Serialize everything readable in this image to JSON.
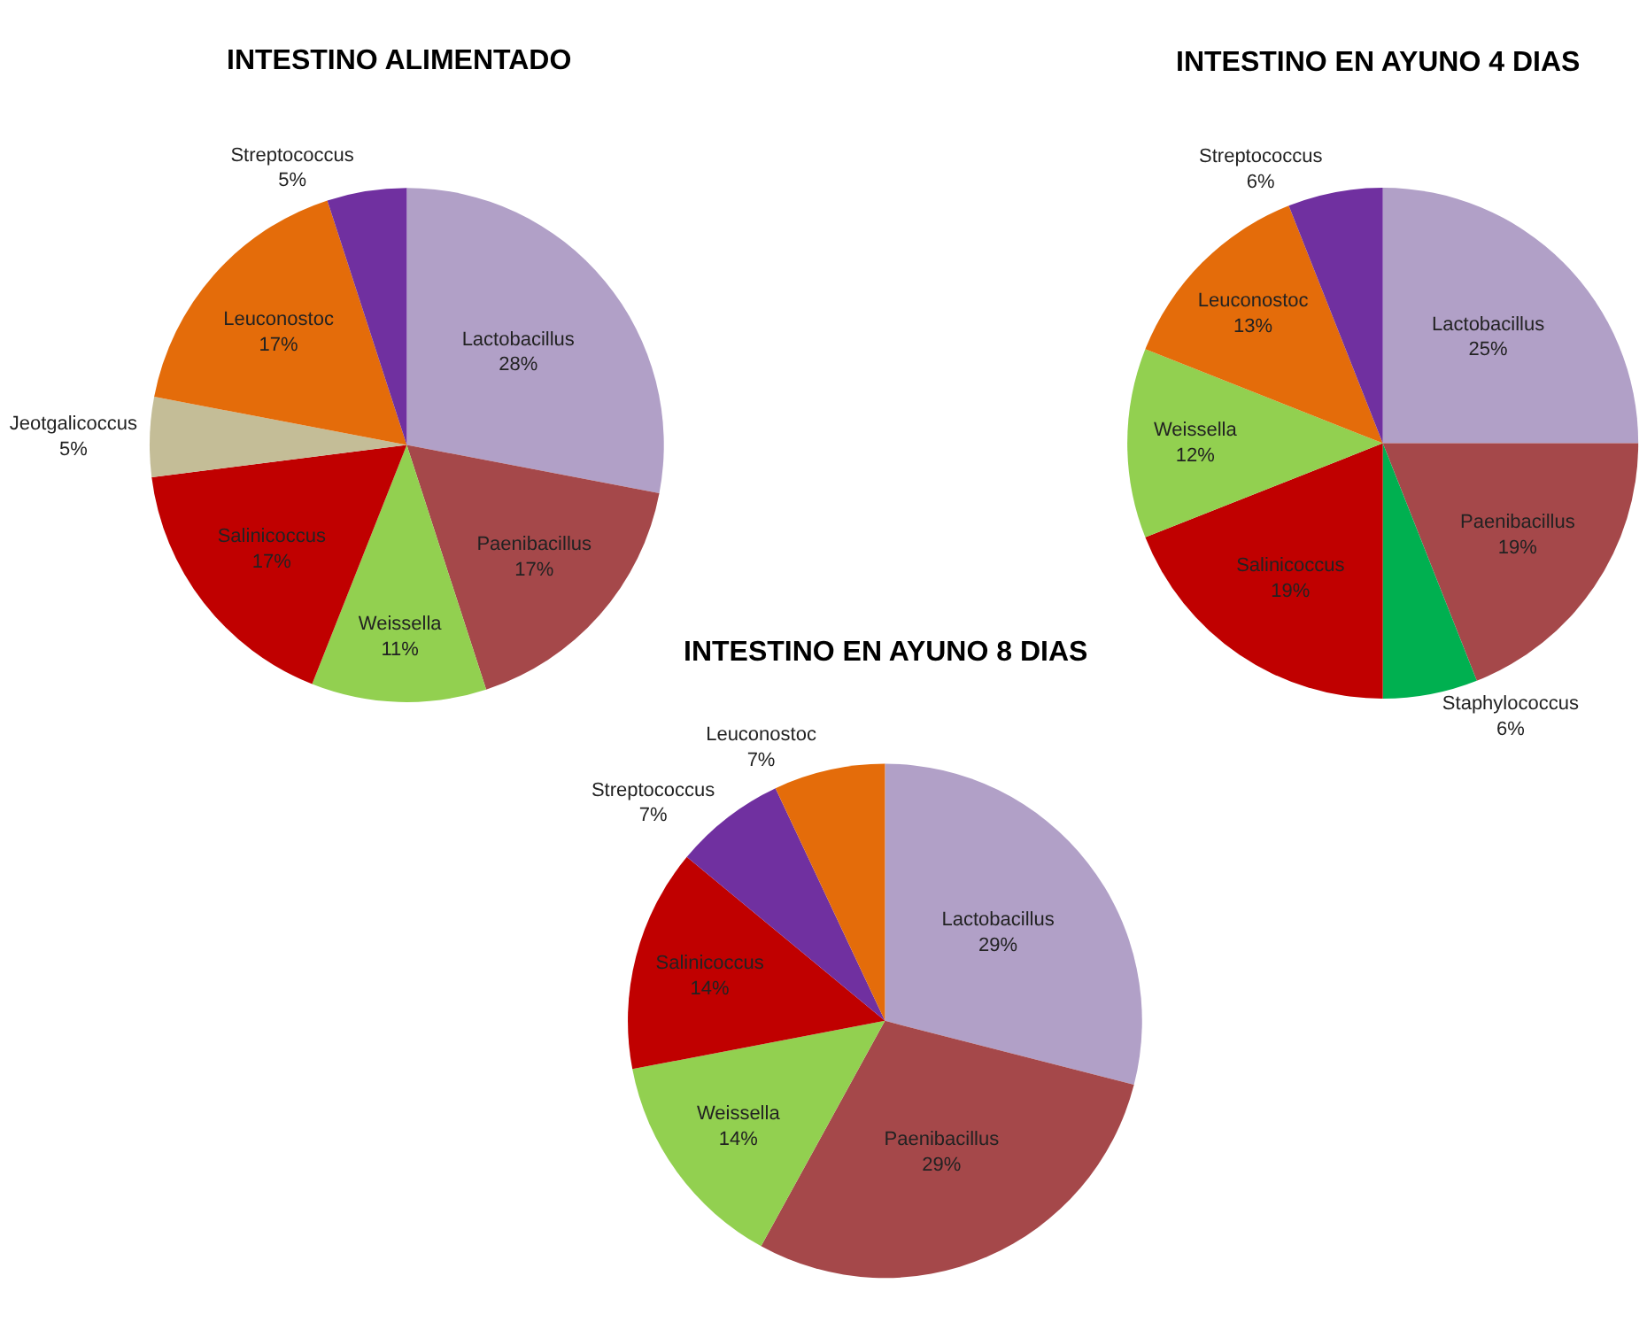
{
  "chart_data": [
    {
      "type": "pie",
      "title": "INTESTINO ALIMENTADO",
      "categories": [
        "Lactobacillus",
        "Paenibacillus",
        "Weissella",
        "Salinicoccus",
        "Jeotgalicoccus",
        "Leuconostoc",
        "Streptococcus"
      ],
      "values": [
        28,
        17,
        11,
        17,
        5,
        17,
        5
      ],
      "value_labels": [
        "28%",
        "17%",
        "11%",
        "17%",
        "5%",
        "17%",
        "5%"
      ],
      "colors": [
        "#b1a0c7",
        "#a5484a",
        "#92d050",
        "#c00000",
        "#c4bd97",
        "#e46c0a",
        "#7030a0"
      ],
      "legend": false
    },
    {
      "type": "pie",
      "title": "INTESTINO EN AYUNO 4 DIAS",
      "categories": [
        "Lactobacillus",
        "Paenibacillus",
        "Staphylococcus",
        "Salinicoccus",
        "Weissella",
        "Leuconostoc",
        "Streptococcus"
      ],
      "values": [
        25,
        19,
        6,
        19,
        12,
        13,
        6
      ],
      "value_labels": [
        "25%",
        "19%",
        "6%",
        "19%",
        "12%",
        "13%",
        "6%"
      ],
      "colors": [
        "#b1a0c7",
        "#a5484a",
        "#00b050",
        "#c00000",
        "#92d050",
        "#e46c0a",
        "#7030a0"
      ],
      "legend": false
    },
    {
      "type": "pie",
      "title": "INTESTINO EN AYUNO 8 DIAS",
      "categories": [
        "Lactobacillus",
        "Paenibacillus",
        "Weissella",
        "Salinicoccus",
        "Streptococcus",
        "Leuconostoc"
      ],
      "values": [
        29,
        29,
        14,
        14,
        7,
        7
      ],
      "value_labels": [
        "29%",
        "29%",
        "14%",
        "14%",
        "7%",
        "7%"
      ],
      "colors": [
        "#b1a0c7",
        "#a5484a",
        "#92d050",
        "#c00000",
        "#7030a0",
        "#e46c0a"
      ],
      "legend": false
    }
  ]
}
